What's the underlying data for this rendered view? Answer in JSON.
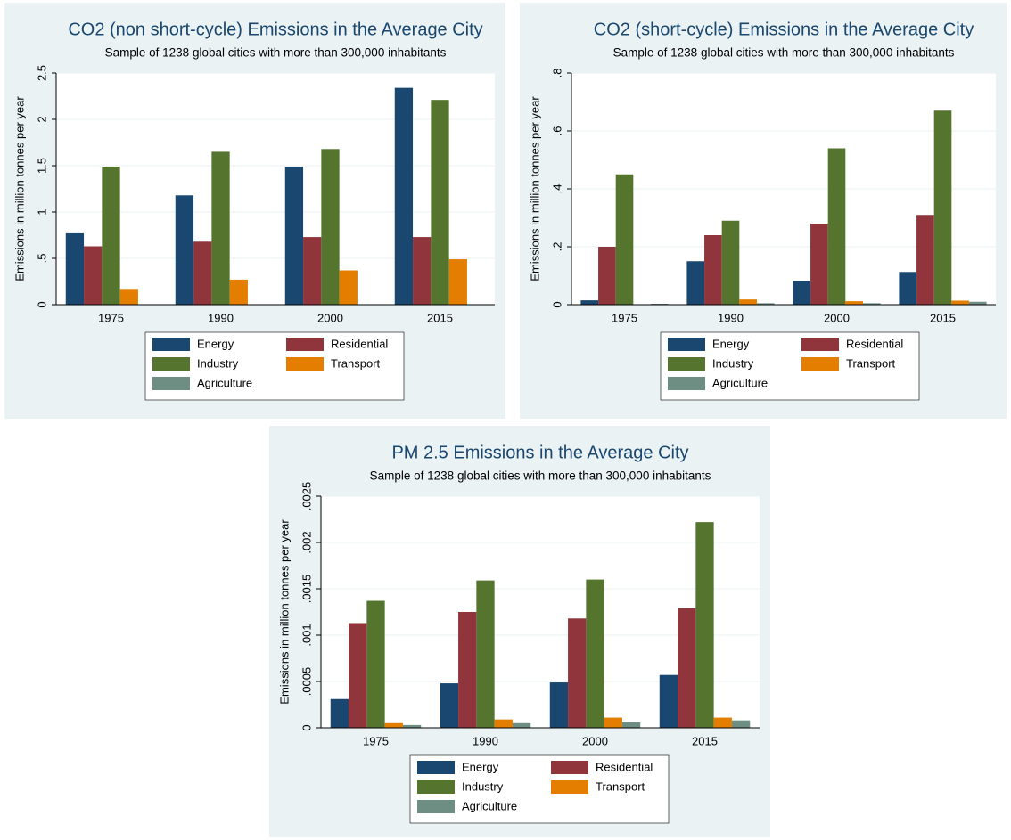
{
  "chart_data": [
    {
      "type": "bar",
      "title": "CO2 (non short-cycle) Emissions in the Average City",
      "subtitle": "Sample of 1238 global cities with more than 300,000 inhabitants",
      "y_label": "Emissions in million tonnes per year",
      "categories": [
        "1975",
        "1990",
        "2000",
        "2015"
      ],
      "series": [
        {
          "name": "Energy",
          "color": "#1a476f",
          "values": [
            0.77,
            1.18,
            1.49,
            2.34
          ]
        },
        {
          "name": "Residential",
          "color": "#90353b",
          "values": [
            0.63,
            0.68,
            0.73,
            0.73
          ]
        },
        {
          "name": "Industry",
          "color": "#55752f",
          "values": [
            1.49,
            1.65,
            1.68,
            2.21
          ]
        },
        {
          "name": "Transport",
          "color": "#e37e00",
          "values": [
            0.17,
            0.27,
            0.37,
            0.49
          ]
        },
        {
          "name": "Agriculture",
          "color": "#6e8e84",
          "values": [
            0,
            0,
            0,
            0
          ]
        }
      ],
      "ylim": [
        0,
        2.5
      ],
      "yticks": [
        0,
        {
          "value": 0.5,
          "label": ".5"
        },
        1,
        1.5,
        2,
        2.5
      ],
      "grid": true
    },
    {
      "type": "bar",
      "title": "CO2 (short-cycle) Emissions in the Average City",
      "subtitle": "Sample of 1238 global cities with more than 300,000 inhabitants",
      "y_label": "Emissions in million tonnes per year",
      "categories": [
        "1975",
        "1990",
        "2000",
        "2015"
      ],
      "series": [
        {
          "name": "Energy",
          "color": "#1a476f",
          "values": [
            0.015,
            0.15,
            0.082,
            0.113
          ]
        },
        {
          "name": "Residential",
          "color": "#90353b",
          "values": [
            0.2,
            0.24,
            0.28,
            0.31
          ]
        },
        {
          "name": "Industry",
          "color": "#55752f",
          "values": [
            0.45,
            0.29,
            0.54,
            0.67
          ]
        },
        {
          "name": "Transport",
          "color": "#e37e00",
          "values": [
            0,
            0.018,
            0.012,
            0.014
          ]
        },
        {
          "name": "Agriculture",
          "color": "#6e8e84",
          "values": [
            0.003,
            0.005,
            0.005,
            0.01
          ]
        }
      ],
      "ylim": [
        0,
        0.8
      ],
      "yticks": [
        0,
        {
          "value": 0.2,
          "label": ".2"
        },
        {
          "value": 0.4,
          "label": ".4"
        },
        {
          "value": 0.6,
          "label": ".6"
        },
        {
          "value": 0.8,
          "label": ".8"
        }
      ],
      "grid": true
    },
    {
      "type": "bar",
      "title": "PM 2.5 Emissions in the Average City",
      "subtitle": "Sample of 1238 global cities with more than 300,000 inhabitants",
      "y_label": "Emissions in million tonnes per year",
      "categories": [
        "1975",
        "1990",
        "2000",
        "2015"
      ],
      "series": [
        {
          "name": "Energy",
          "color": "#1a476f",
          "values": [
            0.00031,
            0.00048,
            0.00049,
            0.00057
          ]
        },
        {
          "name": "Residential",
          "color": "#90353b",
          "values": [
            0.00113,
            0.00125,
            0.00118,
            0.00129
          ]
        },
        {
          "name": "Industry",
          "color": "#55752f",
          "values": [
            0.00137,
            0.00159,
            0.0016,
            0.00222
          ]
        },
        {
          "name": "Transport",
          "color": "#e37e00",
          "values": [
            5e-05,
            9e-05,
            0.00011,
            0.00011
          ]
        },
        {
          "name": "Agriculture",
          "color": "#6e8e84",
          "values": [
            3e-05,
            5e-05,
            6e-05,
            8e-05
          ]
        }
      ],
      "ylim": [
        0,
        0.0025
      ],
      "yticks": [
        0,
        {
          "value": 0.0005,
          "label": ".0005"
        },
        {
          "value": 0.001,
          "label": ".001"
        },
        {
          "value": 0.0015,
          "label": ".0015"
        },
        {
          "value": 0.002,
          "label": ".002"
        },
        {
          "value": 0.0025,
          "label": ".0025"
        }
      ],
      "grid": true
    }
  ]
}
